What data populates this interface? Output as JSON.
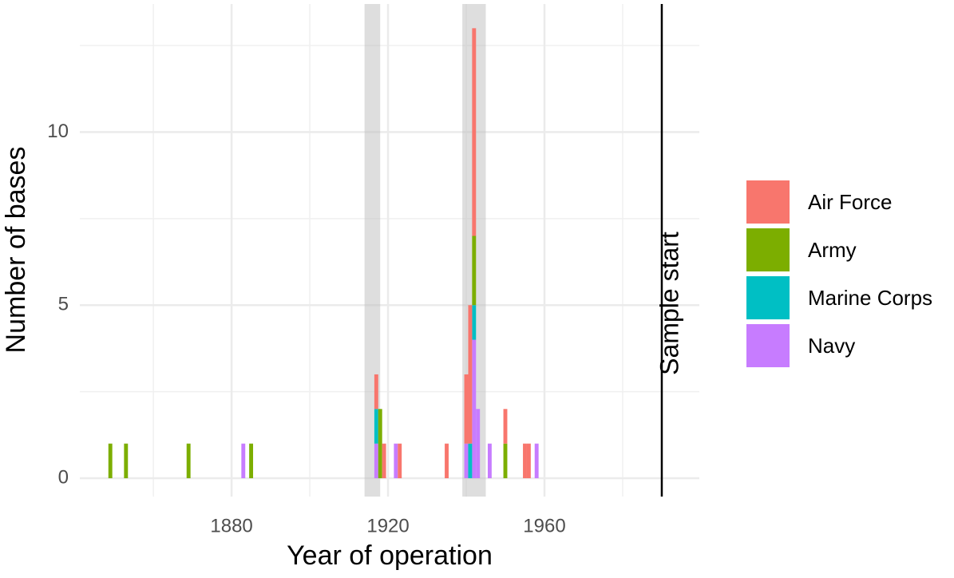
{
  "chart_data": {
    "type": "stacked-histogram",
    "x_label": "Year of operation",
    "y_label": "Number of bases",
    "x": [
      1849,
      1853,
      1869,
      1883,
      1885,
      1917,
      1918,
      1919,
      1922,
      1923,
      1935,
      1940,
      1941,
      1942,
      1943,
      1946,
      1950,
      1955,
      1956,
      1958
    ],
    "binwidth": 1,
    "series": [
      {
        "name": "Air Force",
        "color": "#F8766D",
        "values": [
          0,
          0,
          0,
          0,
          0,
          1,
          0,
          1,
          0,
          1,
          1,
          2,
          4,
          6,
          0,
          0,
          1,
          1,
          1,
          0
        ]
      },
      {
        "name": "Army",
        "color": "#7CAE00",
        "values": [
          1,
          1,
          1,
          0,
          1,
          0,
          2,
          0,
          0,
          0,
          0,
          0,
          0,
          2,
          0,
          0,
          1,
          0,
          0,
          0
        ]
      },
      {
        "name": "Marine Corps",
        "color": "#00BFC4",
        "values": [
          0,
          0,
          0,
          0,
          0,
          1,
          0,
          0,
          0,
          0,
          0,
          0,
          1,
          1,
          0,
          0,
          0,
          0,
          0,
          0
        ]
      },
      {
        "name": "Navy",
        "color": "#C77CFF",
        "values": [
          0,
          0,
          0,
          1,
          0,
          1,
          0,
          0,
          1,
          0,
          0,
          1,
          0,
          4,
          2,
          1,
          0,
          0,
          0,
          1
        ]
      }
    ],
    "xlim": [
      1841.2,
      1999.6
    ],
    "ylim": [
      -0.53,
      13.7
    ],
    "xticks": [
      1880,
      1920,
      1960
    ],
    "xminor": [
      1860,
      1900,
      1940,
      1980
    ],
    "yticks": [
      0,
      5,
      10
    ],
    "yminor": [
      2.5,
      7.5,
      12.5
    ],
    "shaded_periods": [
      [
        1914,
        1918
      ],
      [
        1939,
        1945
      ]
    ],
    "vline": {
      "x": 1990,
      "label": "Sample start"
    },
    "grid": true,
    "legend": "right"
  }
}
